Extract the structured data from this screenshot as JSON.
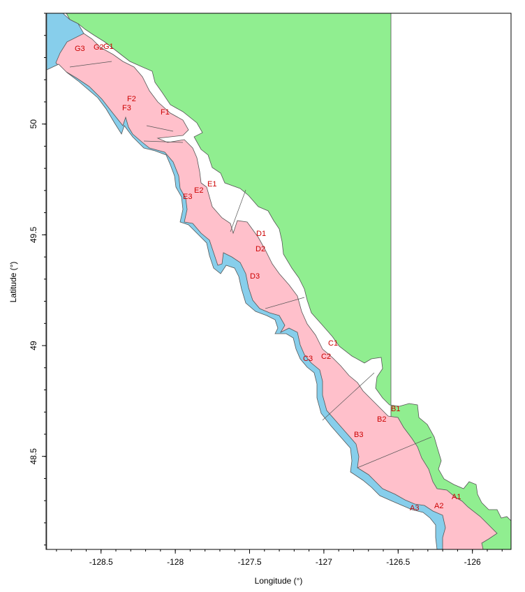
{
  "axes": {
    "x_title": "Longitude (°)",
    "y_title": "Latitude (°)",
    "x_ticks": [
      "-128.5",
      "-128",
      "-127.5",
      "-127",
      "-126.5",
      "-126"
    ],
    "y_ticks": [
      "50",
      "49.5",
      "49",
      "48.5"
    ],
    "x_range": [
      -128.87,
      -125.74
    ],
    "y_range": [
      48.08,
      50.5
    ]
  },
  "colors": {
    "shelf_zone_1": "#90ee90",
    "shelf_zone_2": "#ffc0cb",
    "shelf_zone_3": "#87ceeb",
    "label": "#cc0000",
    "outline": "#555555"
  },
  "regions": [
    {
      "id": "A1",
      "label": "A1"
    },
    {
      "id": "A2",
      "label": "A2"
    },
    {
      "id": "A3",
      "label": "A3"
    },
    {
      "id": "B1",
      "label": "B1"
    },
    {
      "id": "B2",
      "label": "B2"
    },
    {
      "id": "B3",
      "label": "B3"
    },
    {
      "id": "C1",
      "label": "C1"
    },
    {
      "id": "C2",
      "label": "C2"
    },
    {
      "id": "C3",
      "label": "C3"
    },
    {
      "id": "D1",
      "label": "D1"
    },
    {
      "id": "D2",
      "label": "D2"
    },
    {
      "id": "D3",
      "label": "D3"
    },
    {
      "id": "E1",
      "label": "E1"
    },
    {
      "id": "E2",
      "label": "E2"
    },
    {
      "id": "E3",
      "label": "E3"
    },
    {
      "id": "F1",
      "label": "F1"
    },
    {
      "id": "F2",
      "label": "F2"
    },
    {
      "id": "F3",
      "label": "F3"
    },
    {
      "id": "G1",
      "label": "G1"
    },
    {
      "id": "G2",
      "label": "G2"
    },
    {
      "id": "G3",
      "label": "G3"
    }
  ]
}
